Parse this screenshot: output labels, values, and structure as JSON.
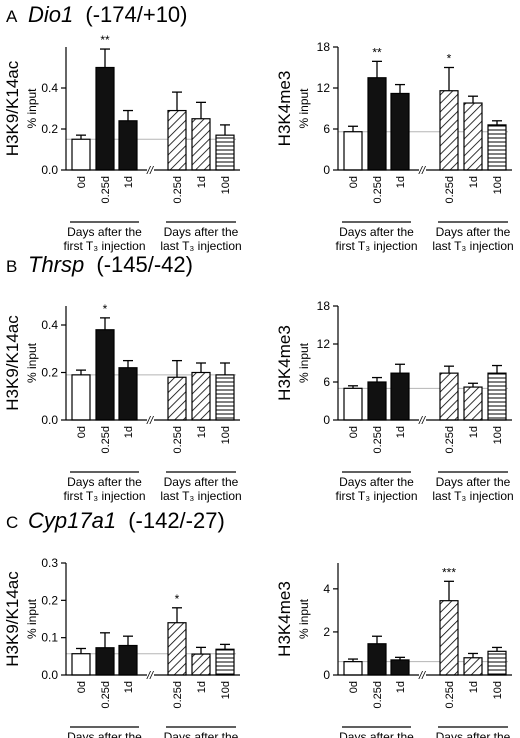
{
  "panels": [
    {
      "letter": "A",
      "gene": "Dio1",
      "region": "(-174/+10)"
    },
    {
      "letter": "B",
      "gene": "Thrsp",
      "region": "(-145/-42)"
    },
    {
      "letter": "C",
      "gene": "Cyp17a1",
      "region": "(-142/-27)"
    }
  ],
  "group_labels": {
    "first_line1": "Days after the",
    "first_line2": "first T₃ injection",
    "last_line1": "Days after the",
    "last_line2": "last T₃ injection"
  },
  "axis_break": "//",
  "chart_data": [
    {
      "id": "A-left",
      "type": "bar",
      "ylabel": "H3K9/K14ac",
      "ylabel2": "% input",
      "ylim": [
        0,
        0.6
      ],
      "yticks": [
        "0.0",
        "0.2",
        "0.4"
      ],
      "ytick_values": [
        0,
        0.2,
        0.4
      ],
      "categories": [
        "0d",
        "0.25d",
        "1d",
        "0.25d",
        "1d",
        "10d"
      ],
      "values": [
        0.15,
        0.5,
        0.24,
        0.29,
        0.25,
        0.17
      ],
      "errors": [
        0.02,
        0.09,
        0.05,
        0.09,
        0.08,
        0.05
      ],
      "fills": [
        "open",
        "solid",
        "solid",
        "diagonal",
        "diagonal",
        "horizontal"
      ],
      "stars": [
        "",
        "**",
        "",
        "",
        "",
        ""
      ],
      "baseline": 0.15
    },
    {
      "id": "A-right",
      "type": "bar",
      "ylabel": "H3K4me3",
      "ylabel2": "% input",
      "ylim": [
        0,
        18
      ],
      "yticks": [
        "0",
        "6",
        "12",
        "18"
      ],
      "ytick_values": [
        0,
        6,
        12,
        18
      ],
      "categories": [
        "0d",
        "0.25d",
        "1d",
        "0.25d",
        "1d",
        "10d"
      ],
      "values": [
        5.6,
        13.5,
        11.2,
        11.6,
        9.8,
        6.6
      ],
      "errors": [
        0.8,
        2.4,
        1.3,
        3.4,
        1.0,
        0.6
      ],
      "fills": [
        "open",
        "solid",
        "solid",
        "diagonal",
        "diagonal",
        "horizontal"
      ],
      "stars": [
        "",
        "**",
        "",
        "*",
        "",
        ""
      ],
      "baseline": 5.6
    },
    {
      "id": "B-left",
      "type": "bar",
      "ylabel": "H3K9/K14ac",
      "ylabel2": "% input",
      "ylim": [
        0,
        0.48
      ],
      "yticks": [
        "0.0",
        "0.2",
        "0.4"
      ],
      "ytick_values": [
        0,
        0.2,
        0.4
      ],
      "categories": [
        "0d",
        "0.25d",
        "1d",
        "0.25d",
        "1d",
        "10d"
      ],
      "values": [
        0.19,
        0.38,
        0.22,
        0.18,
        0.2,
        0.19
      ],
      "errors": [
        0.02,
        0.05,
        0.03,
        0.07,
        0.04,
        0.05
      ],
      "fills": [
        "open",
        "solid",
        "solid",
        "diagonal",
        "diagonal",
        "horizontal"
      ],
      "stars": [
        "",
        "*",
        "",
        "",
        "",
        ""
      ],
      "baseline": 0.19
    },
    {
      "id": "B-right",
      "type": "bar",
      "ylabel": "H3K4me3",
      "ylabel2": "% input",
      "ylim": [
        0,
        18
      ],
      "yticks": [
        "0",
        "6",
        "12",
        "18"
      ],
      "ytick_values": [
        0,
        6,
        12,
        18
      ],
      "categories": [
        "0d",
        "0.25d",
        "1d",
        "0.25d",
        "1d",
        "10d"
      ],
      "values": [
        5.0,
        6.0,
        7.4,
        7.4,
        5.2,
        7.4
      ],
      "errors": [
        0.4,
        0.7,
        1.4,
        1.1,
        0.6,
        1.2
      ],
      "fills": [
        "open",
        "solid",
        "solid",
        "diagonal",
        "diagonal",
        "horizontal"
      ],
      "stars": [
        "",
        "",
        "",
        "",
        "",
        ""
      ],
      "baseline": 5.0
    },
    {
      "id": "C-left",
      "type": "bar",
      "ylabel": "H3K9/K14ac",
      "ylabel2": "% input",
      "ylim": [
        0,
        0.3
      ],
      "yticks": [
        "0.0",
        "0.1",
        "0.2",
        "0.3"
      ],
      "ytick_values": [
        0,
        0.1,
        0.2,
        0.3
      ],
      "categories": [
        "0d",
        "0.25d",
        "1d",
        "0.25d",
        "1d",
        "10d"
      ],
      "values": [
        0.057,
        0.073,
        0.079,
        0.14,
        0.056,
        0.069
      ],
      "errors": [
        0.014,
        0.04,
        0.025,
        0.04,
        0.018,
        0.013
      ],
      "fills": [
        "open",
        "solid",
        "solid",
        "diagonal",
        "diagonal",
        "horizontal"
      ],
      "stars": [
        "",
        "",
        "",
        "*",
        "",
        ""
      ],
      "baseline": 0.057
    },
    {
      "id": "C-right",
      "type": "bar",
      "ylabel": "H3K4me3",
      "ylabel2": "% input",
      "ylim": [
        0,
        5.2
      ],
      "yticks": [
        "0",
        "2",
        "4"
      ],
      "ytick_values": [
        0,
        2,
        4
      ],
      "categories": [
        "0d",
        "0.25d",
        "1d",
        "0.25d",
        "1d",
        "10d"
      ],
      "values": [
        0.62,
        1.45,
        0.7,
        3.45,
        0.8,
        1.1
      ],
      "errors": [
        0.12,
        0.35,
        0.12,
        0.9,
        0.2,
        0.18
      ],
      "fills": [
        "open",
        "solid",
        "solid",
        "diagonal",
        "diagonal",
        "horizontal"
      ],
      "stars": [
        "",
        "",
        "",
        "***",
        "",
        ""
      ],
      "baseline": 0.62
    }
  ]
}
